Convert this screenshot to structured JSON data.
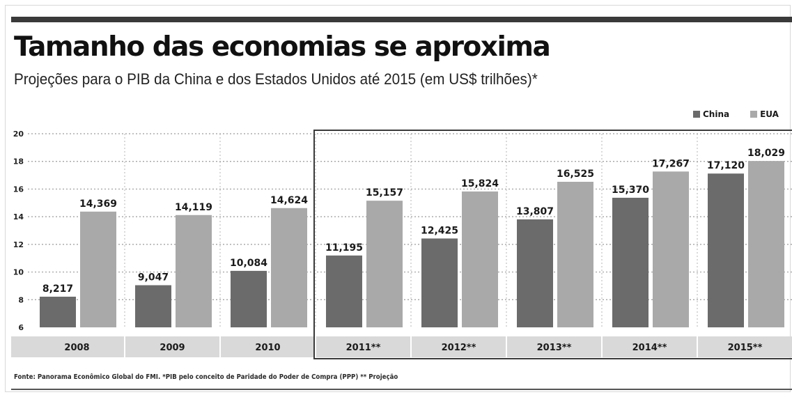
{
  "chart_data": {
    "type": "bar",
    "title": "Tamanho das economias se aproxima",
    "subtitle": "Projeções para o PIB da China e dos Estados Unidos até 2015 (em US$ trilhões)*",
    "xlabel": "",
    "ylabel": "",
    "categories": [
      "2008",
      "2009",
      "2010",
      "2011**",
      "2012**",
      "2013**",
      "2014**",
      "2015**"
    ],
    "series": [
      {
        "name": "China",
        "color": "#6b6b6b",
        "values": [
          8.217,
          9.047,
          10.084,
          11.195,
          12.425,
          13.807,
          15.37,
          17.12
        ],
        "labels": [
          "8,217",
          "9,047",
          "10,084",
          "11,195",
          "12,425",
          "13,807",
          "15,370",
          "17,120"
        ]
      },
      {
        "name": "EUA",
        "color": "#a9a9a9",
        "values": [
          14.369,
          14.119,
          14.624,
          15.157,
          15.824,
          16.525,
          17.267,
          18.029
        ],
        "labels": [
          "14,369",
          "14,119",
          "14,624",
          "15,157",
          "15,824",
          "16,525",
          "17,267",
          "18,029"
        ]
      }
    ],
    "ylim": [
      6,
      20
    ],
    "yticks": [
      6,
      8,
      10,
      12,
      14,
      16,
      18,
      20
    ],
    "grid": true,
    "legend_position": "top-right",
    "projection_from_category": "2011**",
    "source": "Fonte: Panorama Econômico Global do FMI. *PIB pelo conceito de Paridade do Poder de Compra (PPP) ** Projeção"
  }
}
